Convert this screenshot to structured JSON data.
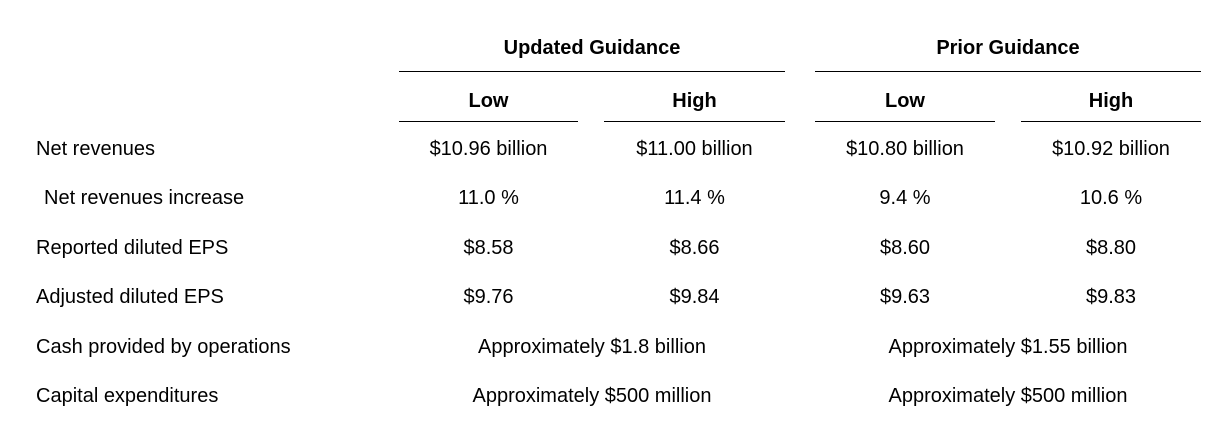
{
  "colors": {
    "text": "#000000",
    "background": "#ffffff",
    "rule": "#000000"
  },
  "table": {
    "groups": [
      {
        "label": "Updated Guidance",
        "columns": [
          "Low",
          "High"
        ]
      },
      {
        "label": "Prior Guidance",
        "columns": [
          "Low",
          "High"
        ]
      }
    ],
    "rows": [
      {
        "label": "Net revenues",
        "values": [
          "$10.96 billion",
          "$11.00 billion",
          "$10.80 billion",
          "$10.92 billion"
        ]
      },
      {
        "label": "Net revenues increase",
        "values": [
          "11.0 %",
          "11.4 %",
          "9.4 %",
          "10.6 %"
        ]
      },
      {
        "label": "Reported diluted EPS",
        "values": [
          "$8.58",
          "$8.66",
          "$8.60",
          "$8.80"
        ]
      },
      {
        "label": "Adjusted diluted EPS",
        "values": [
          "$9.76",
          "$9.84",
          "$9.63",
          "$9.83"
        ]
      },
      {
        "label": "Cash provided by operations",
        "span_values": [
          "Approximately $1.8 billion",
          "Approximately $1.55 billion"
        ]
      },
      {
        "label": "Capital expenditures",
        "span_values": [
          "Approximately $500 million",
          "Approximately $500 million"
        ]
      }
    ]
  }
}
